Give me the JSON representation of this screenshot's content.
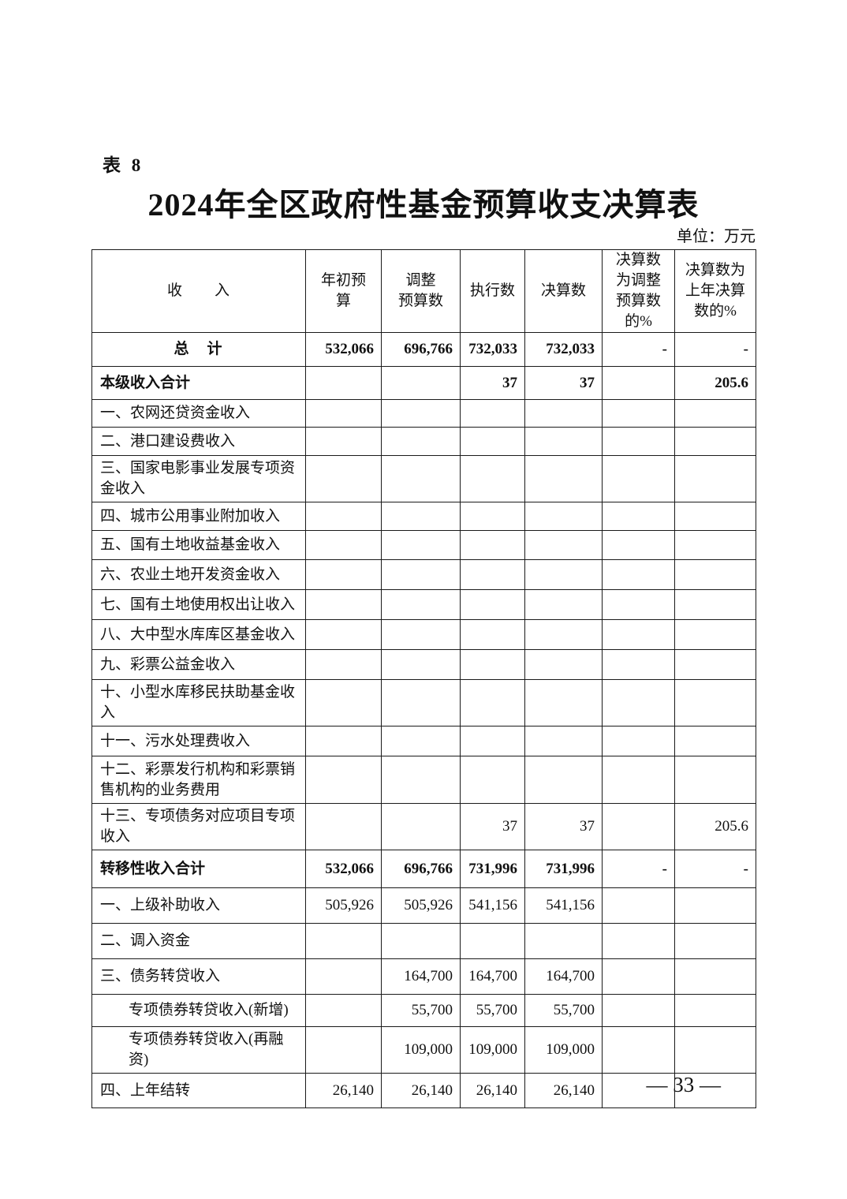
{
  "page": {
    "table_label": "表 8",
    "title": "2024年全区政府性基金预算收支决算表",
    "unit_note": "单位：万元",
    "page_number": "— 33 —"
  },
  "table": {
    "columns": [
      "收　　入",
      "年初预\n算",
      "调整\n预算数",
      "执行数",
      "决算数",
      "决算数\n为调整\n预算数\n的%",
      "决算数为\n上年决算\n数的%"
    ],
    "rows": [
      {
        "label": "总　计",
        "center": true,
        "bold": true,
        "values": [
          "532,066",
          "696,766",
          "732,033",
          "732,033",
          "-",
          "-"
        ]
      },
      {
        "label": "本级收入合计",
        "bold": true,
        "values": [
          "",
          "",
          "37",
          "37",
          "",
          "205.6"
        ]
      },
      {
        "label": "一、农网还贷资金收入",
        "values": [
          "",
          "",
          "",
          "",
          "",
          ""
        ]
      },
      {
        "label": "二、港口建设费收入",
        "values": [
          "",
          "",
          "",
          "",
          "",
          ""
        ]
      },
      {
        "label": "三、国家电影事业发展专项资金收入",
        "values": [
          "",
          "",
          "",
          "",
          "",
          ""
        ]
      },
      {
        "label": "四、城市公用事业附加收入",
        "values": [
          "",
          "",
          "",
          "",
          "",
          ""
        ]
      },
      {
        "label": "五、国有土地收益基金收入",
        "values": [
          "",
          "",
          "",
          "",
          "",
          ""
        ]
      },
      {
        "label": "六、农业土地开发资金收入",
        "values": [
          "",
          "",
          "",
          "",
          "",
          ""
        ]
      },
      {
        "label": "七、国有土地使用权出让收入",
        "values": [
          "",
          "",
          "",
          "",
          "",
          ""
        ]
      },
      {
        "label": "八、大中型水库库区基金收入",
        "values": [
          "",
          "",
          "",
          "",
          "",
          ""
        ]
      },
      {
        "label": "九、彩票公益金收入",
        "values": [
          "",
          "",
          "",
          "",
          "",
          ""
        ]
      },
      {
        "label": "十、小型水库移民扶助基金收入",
        "values": [
          "",
          "",
          "",
          "",
          "",
          ""
        ]
      },
      {
        "label": "十一、污水处理费收入",
        "values": [
          "",
          "",
          "",
          "",
          "",
          ""
        ]
      },
      {
        "label": "十二、彩票发行机构和彩票销售机构的业务费用",
        "values": [
          "",
          "",
          "",
          "",
          "",
          ""
        ]
      },
      {
        "label": "十三、专项债务对应项目专项收入",
        "values": [
          "",
          "",
          "37",
          "37",
          "",
          "205.6"
        ]
      },
      {
        "label": "转移性收入合计",
        "bold": true,
        "values": [
          "532,066",
          "696,766",
          "731,996",
          "731,996",
          "-",
          "-"
        ]
      },
      {
        "label": "一、上级补助收入",
        "values": [
          "505,926",
          "505,926",
          "541,156",
          "541,156",
          "",
          ""
        ]
      },
      {
        "label": "二、调入资金",
        "values": [
          "",
          "",
          "",
          "",
          "",
          ""
        ]
      },
      {
        "label": "三、债务转贷收入",
        "values": [
          "",
          "164,700",
          "164,700",
          "164,700",
          "",
          ""
        ]
      },
      {
        "label": "专项债券转贷收入(新增)",
        "indent": true,
        "values": [
          "",
          "55,700",
          "55,700",
          "55,700",
          "",
          ""
        ]
      },
      {
        "label": "专项债券转贷收入(再融资)",
        "indent": true,
        "values": [
          "",
          "109,000",
          "109,000",
          "109,000",
          "",
          ""
        ]
      },
      {
        "label": "四、上年结转",
        "values": [
          "26,140",
          "26,140",
          "26,140",
          "26,140",
          "",
          ""
        ]
      }
    ]
  }
}
